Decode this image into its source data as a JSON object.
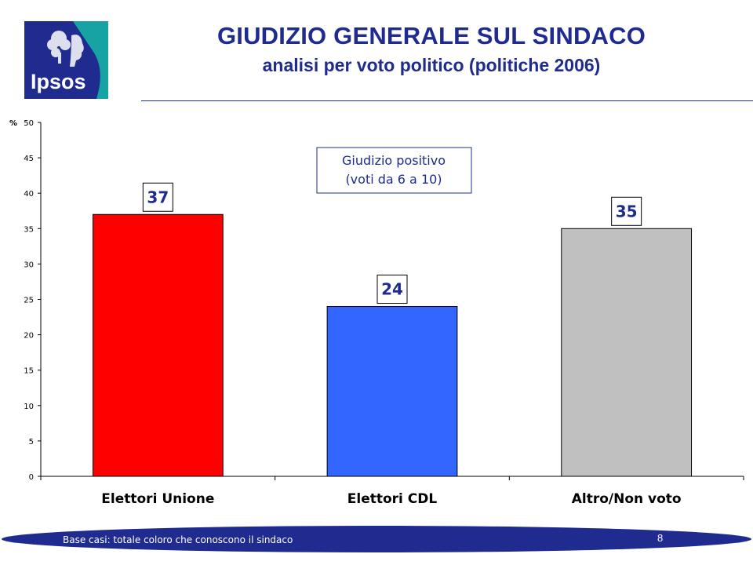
{
  "header": {
    "logo_text": "Ipsos",
    "title": "GIUDIZIO GENERALE SUL SINDACO",
    "subtitle": "analisi per voto politico (politiche 2006)"
  },
  "colors": {
    "title": "#1f2b8f",
    "logo_bg": "#1f2b8f",
    "logo_accent": "#17a3a3",
    "footer_band": "#1f2b8f"
  },
  "chart_data": {
    "type": "bar",
    "ylabel": "%",
    "ylim": [
      0,
      50
    ],
    "yticks": [
      0,
      5,
      10,
      15,
      20,
      25,
      30,
      35,
      40,
      45,
      50
    ],
    "categories": [
      "Elettori Unione",
      "Elettori CDL",
      "Altro/Non voto"
    ],
    "values": [
      37,
      24,
      35
    ],
    "bar_colors": [
      "#ff0000",
      "#3366ff",
      "#c0c0c0"
    ],
    "annotation": {
      "line1": "Giudizio positivo",
      "line2": "(voti da 6 a 10)"
    },
    "grid": false,
    "legend": "none"
  },
  "footer": {
    "note": "Base casi: totale coloro che conoscono il sindaco",
    "page_number": "8"
  }
}
